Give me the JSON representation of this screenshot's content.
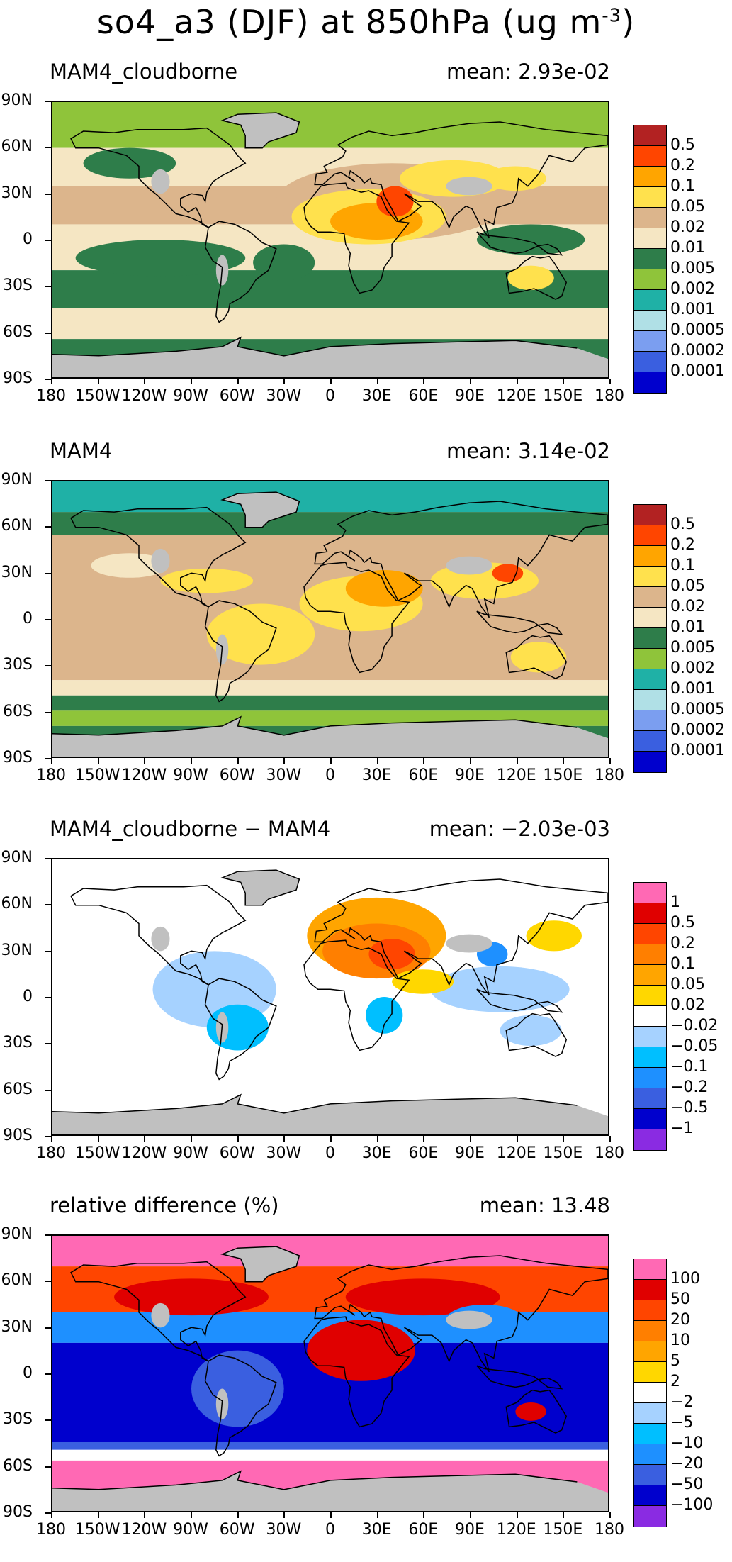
{
  "title_text": "so4_a3 (DJF) at 850hPa (ug m",
  "title_exp": "-3",
  "title_close": ")",
  "lat_labels": [
    "90N",
    "60N",
    "30N",
    "0",
    "30S",
    "60S",
    "90S"
  ],
  "lon_labels": [
    "180",
    "150W",
    "120W",
    "90W",
    "60W",
    "30W",
    "0",
    "30E",
    "60E",
    "90E",
    "120E",
    "150E",
    "180"
  ],
  "palettes": {
    "abs": [
      "#0000cd",
      "#3a5fe0",
      "#7b9ef0",
      "#b0e0e6",
      "#1fb1a6",
      "#8fc43a",
      "#2e7d4a",
      "#f5e6c3",
      "#dcb58c",
      "#ffe14d",
      "#ffa500",
      "#ff4500",
      "#b22222"
    ],
    "diff": [
      "#8a2be2",
      "#0000cd",
      "#3a5fe0",
      "#1e90ff",
      "#00bfff",
      "#a6d2ff",
      "#ffffff",
      "#ffd700",
      "#ffa500",
      "#ff7f00",
      "#ff4500",
      "#e00000",
      "#ff69b4"
    ],
    "land_missing": "#c0c0c0"
  },
  "panels": [
    {
      "id": "cloudborne",
      "label": "MAM4_cloudborne",
      "mean": "mean: 2.93e-02",
      "palette": "abs",
      "colorbar_labels": [
        "0.5",
        "0.2",
        "0.1",
        "0.05",
        "0.02",
        "0.01",
        "0.005",
        "0.002",
        "0.001",
        "0.0005",
        "0.0002",
        "0.0001"
      ]
    },
    {
      "id": "mam4",
      "label": "MAM4",
      "mean": "mean: 3.14e-02",
      "palette": "abs",
      "colorbar_labels": [
        "0.5",
        "0.2",
        "0.1",
        "0.05",
        "0.02",
        "0.01",
        "0.005",
        "0.002",
        "0.001",
        "0.0005",
        "0.0002",
        "0.0001"
      ]
    },
    {
      "id": "difference",
      "label": "MAM4_cloudborne − MAM4",
      "mean": "mean: −2.03e-03",
      "palette": "diff",
      "colorbar_labels": [
        "1",
        "0.5",
        "0.2",
        "0.1",
        "0.05",
        "0.02",
        "−0.02",
        "−0.05",
        "−0.1",
        "−0.2",
        "−0.5",
        "−1"
      ]
    },
    {
      "id": "relative",
      "label": "relative difference (%)",
      "mean": "mean: 13.48",
      "palette": "diff",
      "colorbar_labels": [
        "100",
        "50",
        "20",
        "10",
        "5",
        "2",
        "−2",
        "−5",
        "−10",
        "−20",
        "−50",
        "−100"
      ]
    }
  ]
}
